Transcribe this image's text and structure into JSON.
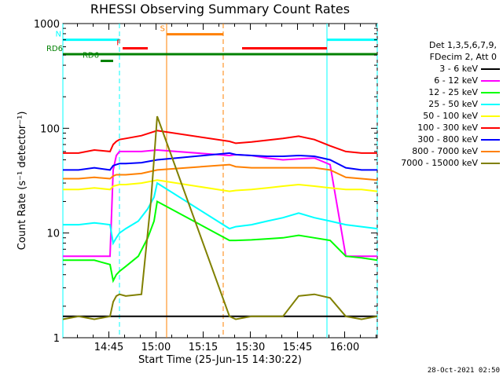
{
  "chart_data": {
    "type": "line",
    "title": "RHESSI Observing Summary Count Rates",
    "xlabel": "Start Time (25-Jun-15 14:30:22)",
    "ylabel": "Count Rate (s⁻¹ detector⁻¹)",
    "yscale": "log",
    "ylim": [
      1,
      1000
    ],
    "ytick_labels": [
      "1",
      "10",
      "100",
      "1000"
    ],
    "xlim_minutes": [
      0,
      100
    ],
    "xtick_labels": [
      "14:45",
      "15:00",
      "15:15",
      "15:30",
      "15:45",
      "16:00"
    ],
    "legend_position": "right",
    "detector_info": [
      "Det 1,3,5,6,7,9,",
      "FDecim 2, Att 0"
    ],
    "series": [
      {
        "name": "3 - 6 keV",
        "color": "#000000",
        "x": [
          0,
          5,
          10,
          15,
          16,
          17,
          18,
          19,
          20,
          21,
          22,
          23,
          24,
          25,
          26,
          27,
          28,
          29,
          30,
          53,
          55,
          60,
          65,
          70,
          75,
          80,
          85,
          90,
          95,
          100
        ],
        "y": [
          1.6,
          1.6,
          1.6,
          1.6,
          1.6,
          1.6,
          1.6,
          1.6,
          1.6,
          1.6,
          1.6,
          1.6,
          1.6,
          1.6,
          1.6,
          1.6,
          1.6,
          1.6,
          1.6,
          1.6,
          1.6,
          1.6,
          1.6,
          1.6,
          1.6,
          1.6,
          1.6,
          1.6,
          1.6,
          1.6
        ]
      },
      {
        "name": "6 - 12 keV",
        "color": "#ff00ff",
        "x": [
          0,
          5,
          10,
          15,
          16,
          17,
          18,
          20,
          25,
          30,
          53,
          55,
          60,
          65,
          70,
          75,
          80,
          85,
          90,
          95,
          100
        ],
        "y": [
          6,
          6,
          6,
          6,
          40,
          55,
          60,
          60,
          60,
          62,
          55,
          56,
          55,
          52,
          50,
          51,
          52,
          45,
          6,
          6,
          6
        ]
      },
      {
        "name": "12 - 25 keV",
        "color": "#00ff00",
        "x": [
          0,
          5,
          10,
          15,
          16,
          17,
          18,
          20,
          24,
          27,
          29,
          30,
          53,
          55,
          60,
          65,
          70,
          75,
          80,
          85,
          90,
          95,
          100
        ],
        "y": [
          5.5,
          5.5,
          5.5,
          5,
          3.5,
          4,
          4.3,
          4.8,
          6,
          9,
          13,
          20,
          8.5,
          8.5,
          8.6,
          8.8,
          9,
          9.5,
          9,
          8.5,
          6,
          5.8,
          5.5
        ]
      },
      {
        "name": "25 - 50 keV",
        "color": "#00ffff",
        "x": [
          0,
          5,
          10,
          15,
          16,
          17,
          18,
          20,
          24,
          27,
          29,
          30,
          53,
          55,
          60,
          65,
          70,
          75,
          80,
          85,
          90,
          95,
          100
        ],
        "y": [
          12,
          12,
          12.5,
          12,
          8,
          9,
          10,
          11,
          13,
          17,
          22,
          30,
          11,
          11.5,
          12,
          13,
          14,
          15.5,
          14,
          13,
          12,
          11.5,
          11
        ]
      },
      {
        "name": "50 - 100 keV",
        "color": "#ffff00",
        "x": [
          0,
          5,
          10,
          15,
          16,
          17,
          18,
          20,
          25,
          30,
          53,
          55,
          60,
          65,
          70,
          75,
          80,
          85,
          90,
          95,
          100
        ],
        "y": [
          26,
          26,
          27,
          26,
          28,
          28.5,
          29,
          29,
          30,
          32,
          25,
          25.5,
          26,
          27,
          28,
          29,
          28,
          27,
          26,
          26,
          25
        ]
      },
      {
        "name": "100 - 300 keV",
        "color": "#ff0000",
        "x": [
          0,
          5,
          10,
          15,
          16,
          17,
          18,
          20,
          25,
          30,
          53,
          55,
          60,
          65,
          70,
          75,
          80,
          85,
          90,
          95,
          100
        ],
        "y": [
          58,
          58,
          62,
          60,
          70,
          75,
          78,
          80,
          85,
          95,
          75,
          72,
          74,
          77,
          80,
          84,
          78,
          68,
          60,
          58,
          58
        ]
      },
      {
        "name": "300 - 800 keV",
        "color": "#0000ff",
        "x": [
          0,
          5,
          10,
          15,
          16,
          17,
          18,
          20,
          25,
          30,
          53,
          55,
          60,
          65,
          70,
          75,
          80,
          85,
          90,
          95,
          100
        ],
        "y": [
          40,
          40,
          42,
          40,
          44,
          45,
          46,
          46,
          47,
          50,
          58,
          56,
          55,
          54,
          54,
          55,
          54,
          50,
          42,
          40,
          40
        ]
      },
      {
        "name": "800 - 7000 keV",
        "color": "#ff8000",
        "x": [
          0,
          5,
          10,
          15,
          16,
          17,
          18,
          20,
          25,
          30,
          53,
          55,
          60,
          65,
          70,
          75,
          80,
          85,
          90,
          95,
          100
        ],
        "y": [
          33,
          33,
          34,
          33,
          35,
          36,
          36,
          36,
          37,
          40,
          45,
          43,
          42,
          42,
          42,
          42,
          42,
          40,
          34,
          33,
          32
        ]
      },
      {
        "name": "7000 - 15000 keV",
        "color": "#808000",
        "x": [
          0,
          5,
          10,
          15,
          16,
          17,
          18,
          20,
          25,
          28,
          30,
          53,
          55,
          60,
          65,
          70,
          75,
          80,
          85,
          90,
          95,
          100
        ],
        "y": [
          1.5,
          1.6,
          1.5,
          1.6,
          2.2,
          2.5,
          2.6,
          2.5,
          2.6,
          20,
          130,
          1.6,
          1.5,
          1.6,
          1.6,
          1.6,
          2.5,
          2.6,
          2.4,
          1.6,
          1.5,
          1.6
        ]
      }
    ],
    "flag_bars": [
      {
        "label": "N",
        "color": "#00ffff",
        "segments": [
          [
            0,
            18
          ],
          [
            84,
            100
          ]
        ],
        "level": 700
      },
      {
        "label": "F",
        "color": "#ff0000",
        "segments": [
          [
            19,
            27
          ],
          [
            57,
            84
          ]
        ],
        "level": 580
      },
      {
        "label": "S",
        "color": "#ff8000",
        "segments": [
          [
            33,
            51
          ]
        ],
        "level": 790
      },
      {
        "label": "RD6",
        "color": "#008000",
        "segments": [
          [
            0,
            100
          ]
        ],
        "level": 510
      },
      {
        "label": "RD6",
        "color": "#008000",
        "segments": [
          [
            12,
            16
          ]
        ],
        "level": 440
      }
    ],
    "vertical_markers": [
      {
        "x": 18,
        "color": "#00ffff",
        "style": "dashed"
      },
      {
        "x": 33,
        "color": "#ff8000",
        "style": "solid"
      },
      {
        "x": 51,
        "color": "#ff8000",
        "style": "dashed"
      },
      {
        "x": 84,
        "color": "#00ffff",
        "style": "solid"
      },
      {
        "x": 100,
        "color": "#00ffff",
        "style": "dashed"
      },
      {
        "x": 0,
        "color": "#00ffff",
        "style": "solid"
      }
    ]
  },
  "legend_title_line1": "Det 1,3,5,6,7,9,",
  "legend_title_line2": "FDecim 2, Att 0",
  "timestamp": "28-Oct-2021 02:50"
}
